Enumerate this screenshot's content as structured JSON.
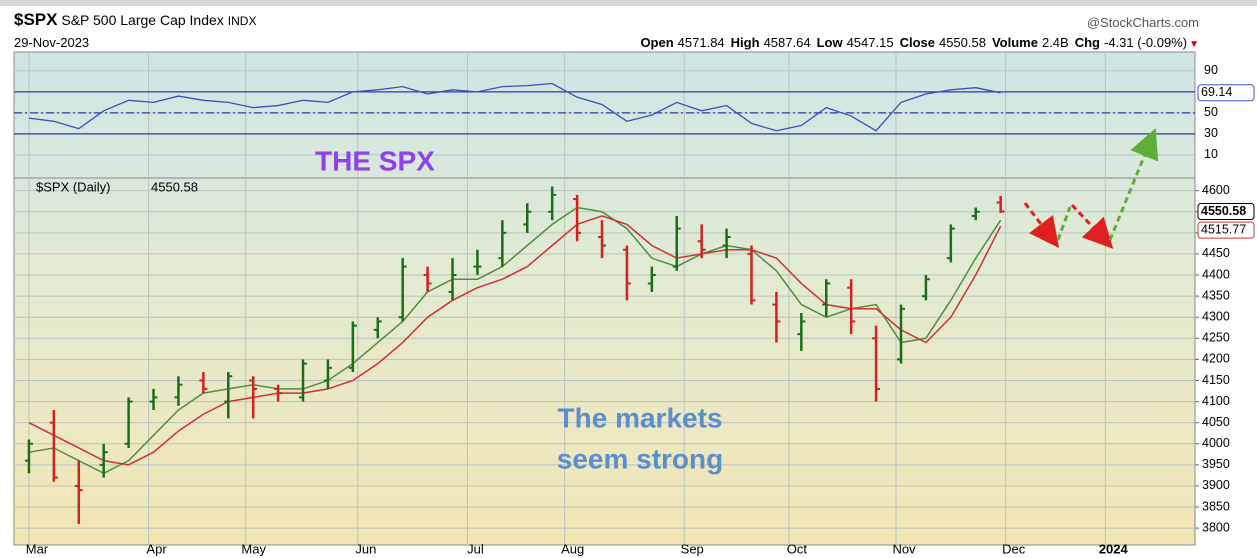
{
  "chart_data": {
    "type": "ohlc",
    "title": "$SPX",
    "subtitle": "S&P 500 Large Cap Index",
    "exchange": "INDX",
    "date": "29-Nov-2023",
    "source": "@StockCharts.com",
    "quote": [
      {
        "label": "Open",
        "value": 4571.84
      },
      {
        "label": "High",
        "value": 4587.64
      },
      {
        "label": "Low",
        "value": 4547.15
      },
      {
        "label": "Close",
        "value": 4550.58
      },
      {
        "label": "Volume",
        "value": "2.4B"
      },
      {
        "label": "Chg",
        "value": "-4.31 (-0.09%)"
      }
    ],
    "legend": "$SPX (Daily)",
    "up_color": "#1a6e1a",
    "down_color": "#d42020",
    "open": [
      3960,
      4050,
      3900,
      3950,
      4000,
      4100,
      4110,
      4150,
      4100,
      4150,
      4130,
      4110,
      4150,
      4180,
      4270,
      4300,
      4400,
      4360,
      4420,
      4440,
      4520,
      4550,
      4580,
      4490,
      4460,
      4380,
      4420,
      4480,
      4470,
      4450,
      4330,
      4260,
      4330,
      4370,
      4250,
      4200,
      4350,
      4440,
      4540,
      4571.84
    ],
    "high": [
      4010,
      4080,
      3960,
      4000,
      4110,
      4130,
      4160,
      4170,
      4170,
      4160,
      4140,
      4200,
      4200,
      4290,
      4300,
      4440,
      4420,
      4440,
      4460,
      4530,
      4570,
      4610,
      4590,
      4530,
      4470,
      4420,
      4540,
      4520,
      4510,
      4470,
      4360,
      4310,
      4390,
      4390,
      4280,
      4330,
      4400,
      4520,
      4560,
      4587.64
    ],
    "low": [
      3930,
      3910,
      3810,
      3920,
      3990,
      4080,
      4090,
      4120,
      4060,
      4060,
      4100,
      4100,
      4130,
      4170,
      4250,
      4290,
      4360,
      4340,
      4400,
      4420,
      4500,
      4530,
      4480,
      4440,
      4340,
      4360,
      4410,
      4440,
      4440,
      4330,
      4240,
      4220,
      4300,
      4260,
      4100,
      4190,
      4340,
      4430,
      4530,
      4547.15
    ],
    "close": [
      4000,
      3920,
      3890,
      3980,
      4100,
      4110,
      4140,
      4130,
      4160,
      4130,
      4120,
      4190,
      4180,
      4280,
      4290,
      4420,
      4380,
      4400,
      4420,
      4500,
      4550,
      4590,
      4500,
      4470,
      4380,
      4400,
      4510,
      4460,
      4490,
      4340,
      4290,
      4290,
      4380,
      4290,
      4130,
      4320,
      4390,
      4510,
      4550,
      4550.58
    ],
    "moving_averages": [
      {
        "color": "#4f8f3a",
        "values": [
          3980,
          3990,
          3960,
          3930,
          3960,
          4020,
          4080,
          4120,
          4130,
          4140,
          4130,
          4130,
          4150,
          4190,
          4240,
          4290,
          4360,
          4390,
          4390,
          4420,
          4470,
          4520,
          4560,
          4550,
          4510,
          4440,
          4420,
          4450,
          4470,
          4460,
          4410,
          4330,
          4300,
          4320,
          4330,
          4240,
          4250,
          4340,
          4440,
          4530
        ]
      },
      {
        "color": "#d03030",
        "values": [
          4050,
          4020,
          3990,
          3960,
          3950,
          3980,
          4030,
          4070,
          4100,
          4110,
          4120,
          4120,
          4130,
          4150,
          4190,
          4240,
          4300,
          4340,
          4370,
          4390,
          4420,
          4470,
          4520,
          4540,
          4520,
          4470,
          4440,
          4450,
          4460,
          4460,
          4440,
          4380,
          4330,
          4320,
          4320,
          4270,
          4240,
          4300,
          4400,
          4515.77
        ]
      }
    ],
    "xlim": [
      -0.6,
      46.8
    ],
    "xticks": [
      {
        "value": 0,
        "label": "Mar"
      },
      {
        "value": 4.8,
        "label": "Apr"
      },
      {
        "value": 8.7,
        "label": "May"
      },
      {
        "value": 13.2,
        "label": "Jun"
      },
      {
        "value": 17.6,
        "label": "Jul"
      },
      {
        "value": 21.5,
        "label": "Aug"
      },
      {
        "value": 26.3,
        "label": "Sep"
      },
      {
        "value": 30.5,
        "label": "Oct"
      },
      {
        "value": 34.8,
        "label": "Nov"
      },
      {
        "value": 39.2,
        "label": "Dec"
      },
      {
        "value": 43.2,
        "label": "2024"
      }
    ],
    "ylim": [
      3760,
      4630
    ],
    "yticks": [
      3800,
      3850,
      3900,
      3950,
      4000,
      4050,
      4100,
      4150,
      4200,
      4250,
      4300,
      4350,
      4400,
      4450,
      4500,
      4550,
      4600
    ],
    "grid": true,
    "indicator": {
      "color": "#3a4fc0",
      "values": [
        45,
        42,
        35,
        52,
        62,
        60,
        66,
        62,
        60,
        55,
        57,
        62,
        60,
        70,
        72,
        75,
        68,
        72,
        70,
        75,
        76,
        78,
        65,
        58,
        42,
        48,
        60,
        52,
        57,
        40,
        33,
        38,
        55,
        47,
        33,
        60,
        68,
        72,
        74,
        69.14
      ],
      "ylim": [
        -12,
        108
      ],
      "yticks": [
        10,
        30,
        50,
        90
      ],
      "levels": [
        30,
        50,
        70
      ]
    },
    "annotations": [
      "THE SPX",
      "The markets",
      "seem strong"
    ]
  }
}
